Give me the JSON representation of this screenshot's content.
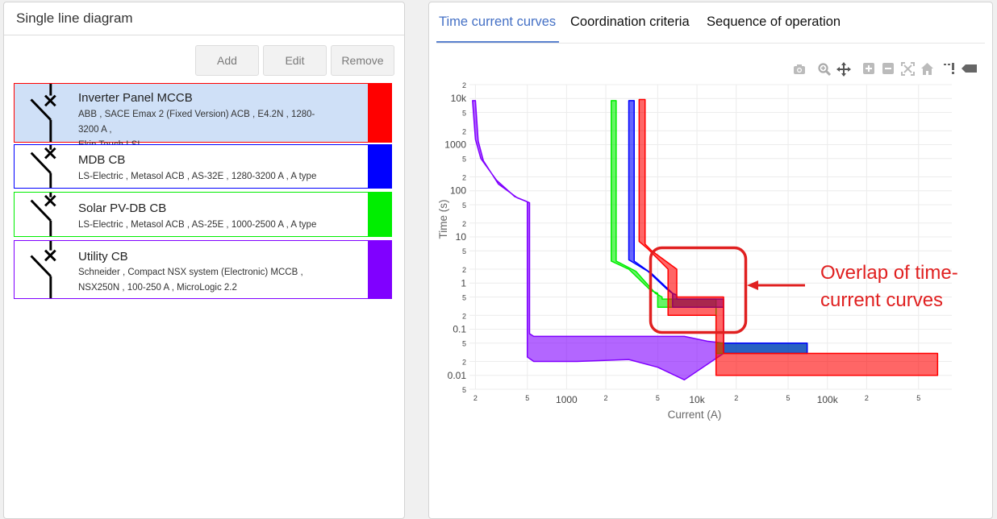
{
  "left_panel": {
    "title": "Single line diagram",
    "buttons": {
      "add": "Add",
      "edit": "Edit",
      "remove": "Remove"
    },
    "devices": [
      {
        "name": "Inverter Panel MCCB",
        "line1": "ABB , SACE Emax 2 (Fixed Version) ACB , E4.2N , 1280-3200 A ,",
        "line2": "Ekip Touch LSI",
        "color": "#ff0000",
        "selected": true
      },
      {
        "name": "MDB CB",
        "line1": "LS-Electric , Metasol ACB , AS-32E , 1280-3200 A , A type",
        "color": "#0000ff",
        "selected": false
      },
      {
        "name": "Solar PV-DB CB",
        "line1": "LS-Electric , Metasol ACB , AS-25E , 1000-2500 A , A type",
        "color": "#00ee00",
        "selected": false
      },
      {
        "name": "Utility CB",
        "line1": "Schneider , Compact NSX system (Electronic) MCCB ,",
        "line2": "NSX250N , 100-250 A , MicroLogic 2.2",
        "color": "#8000ff",
        "selected": false
      }
    ]
  },
  "right_panel": {
    "tabs": [
      "Time current curves",
      "Coordination criteria",
      "Sequence of operation"
    ],
    "active_tab": 0,
    "modebar": [
      "camera-icon",
      "zoom-icon",
      "pan-icon",
      "zoom-in-icon",
      "zoom-out-icon",
      "autoscale-icon",
      "reset-axes-icon",
      "spike-lines-icon",
      "hover-compare-icon"
    ]
  },
  "annotation": {
    "line1": "Overlap of time-",
    "line2": "current curves",
    "color": "#e02020"
  },
  "chart_data": {
    "type": "area",
    "title": "",
    "xlabel": "Current (A)",
    "ylabel": "Time (s)",
    "xscale": "log",
    "yscale": "log",
    "xlim": [
      180,
      900000
    ],
    "ylim": [
      0.005,
      20000
    ],
    "grid": true,
    "x_ticks": [
      "2",
      "5",
      "1000",
      "2",
      "5",
      "10k",
      "2",
      "5",
      "100k",
      "2",
      "5"
    ],
    "y_ticks": [
      "2",
      "10k",
      "5",
      "2",
      "1000",
      "5",
      "2",
      "100",
      "5",
      "2",
      "10",
      "5",
      "2",
      "1",
      "5",
      "2",
      "0.1",
      "5",
      "2",
      "0.01",
      "5"
    ],
    "series": [
      {
        "name": "Utility CB",
        "color": "#8000ff",
        "upper": [
          [
            200,
            9000
          ],
          [
            210,
            1200
          ],
          [
            230,
            450
          ],
          [
            300,
            140
          ],
          [
            420,
            70
          ],
          [
            520,
            55
          ],
          [
            520,
            0.08
          ],
          [
            560,
            0.07
          ],
          [
            1200,
            0.07
          ],
          [
            8000,
            0.07
          ],
          [
            12000,
            0.055
          ],
          [
            16000,
            0.05
          ]
        ],
        "lower": [
          [
            190,
            9000
          ],
          [
            200,
            1300
          ],
          [
            220,
            500
          ],
          [
            290,
            170
          ],
          [
            400,
            75
          ],
          [
            500,
            58
          ],
          [
            500,
            0.025
          ],
          [
            560,
            0.02
          ],
          [
            1200,
            0.02
          ],
          [
            3000,
            0.022
          ],
          [
            5000,
            0.015
          ],
          [
            8000,
            0.008
          ],
          [
            16000,
            0.03
          ]
        ]
      },
      {
        "name": "Solar PV-DB CB",
        "color": "#00ee00",
        "upper": [
          [
            2400,
            9000
          ],
          [
            2400,
            3
          ],
          [
            3400,
            1.8
          ],
          [
            4800,
            0.6
          ],
          [
            5400,
            0.5
          ],
          [
            5400,
            0.45
          ],
          [
            14000,
            0.45
          ],
          [
            14000,
            0.05
          ],
          [
            70000,
            0.05
          ]
        ],
        "lower": [
          [
            2200,
            9000
          ],
          [
            2200,
            3
          ],
          [
            3000,
            2
          ],
          [
            4400,
            0.7
          ],
          [
            5000,
            0.6
          ],
          [
            5000,
            0.3
          ],
          [
            14000,
            0.3
          ],
          [
            14000,
            0.03
          ],
          [
            70000,
            0.03
          ]
        ]
      },
      {
        "name": "MDB CB",
        "color": "#0000ff",
        "upper": [
          [
            3300,
            9000
          ],
          [
            3300,
            3
          ],
          [
            4500,
            1.6
          ],
          [
            6500,
            0.6
          ],
          [
            7000,
            0.55
          ],
          [
            7000,
            0.45
          ],
          [
            16000,
            0.45
          ],
          [
            16000,
            0.05
          ],
          [
            70000,
            0.05
          ]
        ],
        "lower": [
          [
            3000,
            9000
          ],
          [
            3000,
            3.2
          ],
          [
            4200,
            1.8
          ],
          [
            6000,
            0.7
          ],
          [
            6500,
            0.6
          ],
          [
            6500,
            0.3
          ],
          [
            16000,
            0.3
          ],
          [
            16000,
            0.03
          ],
          [
            70000,
            0.03
          ]
        ]
      },
      {
        "name": "Inverter Panel MCCB",
        "color": "#ff0000",
        "upper": [
          [
            4000,
            9500
          ],
          [
            4000,
            7
          ],
          [
            4500,
            5
          ],
          [
            7000,
            2
          ],
          [
            7000,
            0.5
          ],
          [
            16000,
            0.5
          ],
          [
            16000,
            0.03
          ],
          [
            700000,
            0.03
          ]
        ],
        "lower": [
          [
            3600,
            9500
          ],
          [
            3600,
            8
          ],
          [
            4200,
            5.5
          ],
          [
            6000,
            2
          ],
          [
            6000,
            0.2
          ],
          [
            14000,
            0.2
          ],
          [
            14000,
            0.01
          ],
          [
            700000,
            0.01
          ]
        ]
      }
    ]
  }
}
